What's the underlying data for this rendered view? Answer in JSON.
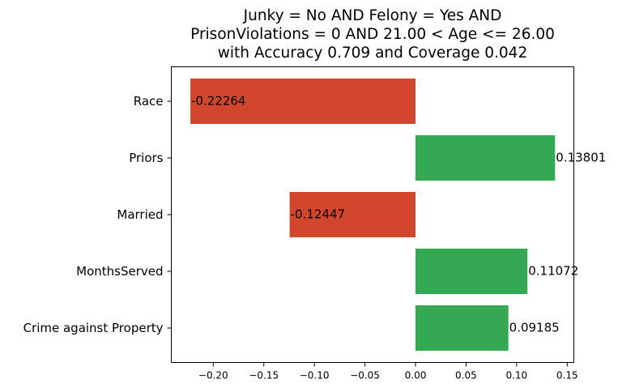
{
  "chart_data": {
    "type": "bar",
    "orientation": "horizontal",
    "title_lines": [
      "Junky = No AND Felony = Yes AND",
      "PrisonViolations = 0 AND 21.00 < Age <= 26.00",
      "with Accuracy 0.709 and Coverage 0.042"
    ],
    "categories": [
      "Race",
      "Priors",
      "Married",
      "MonthsServed",
      "Crime against Property"
    ],
    "values": [
      -0.22264,
      0.13801,
      -0.12447,
      0.11072,
      0.09185
    ],
    "value_labels": [
      "-0.22264",
      "0.13801",
      "-0.12447",
      "0.11072",
      "0.09185"
    ],
    "xlim": [
      -0.2415,
      0.1566
    ],
    "xticks": [
      -0.2,
      -0.15,
      -0.1,
      -0.05,
      0.0,
      0.05,
      0.1,
      0.15
    ],
    "xtick_labels": [
      "−0.20",
      "−0.15",
      "−0.10",
      "−0.05",
      "0.00",
      "0.05",
      "0.10",
      "0.15"
    ],
    "grid": false,
    "colors": {
      "negative": "#d1462c",
      "positive": "#34a853"
    }
  }
}
